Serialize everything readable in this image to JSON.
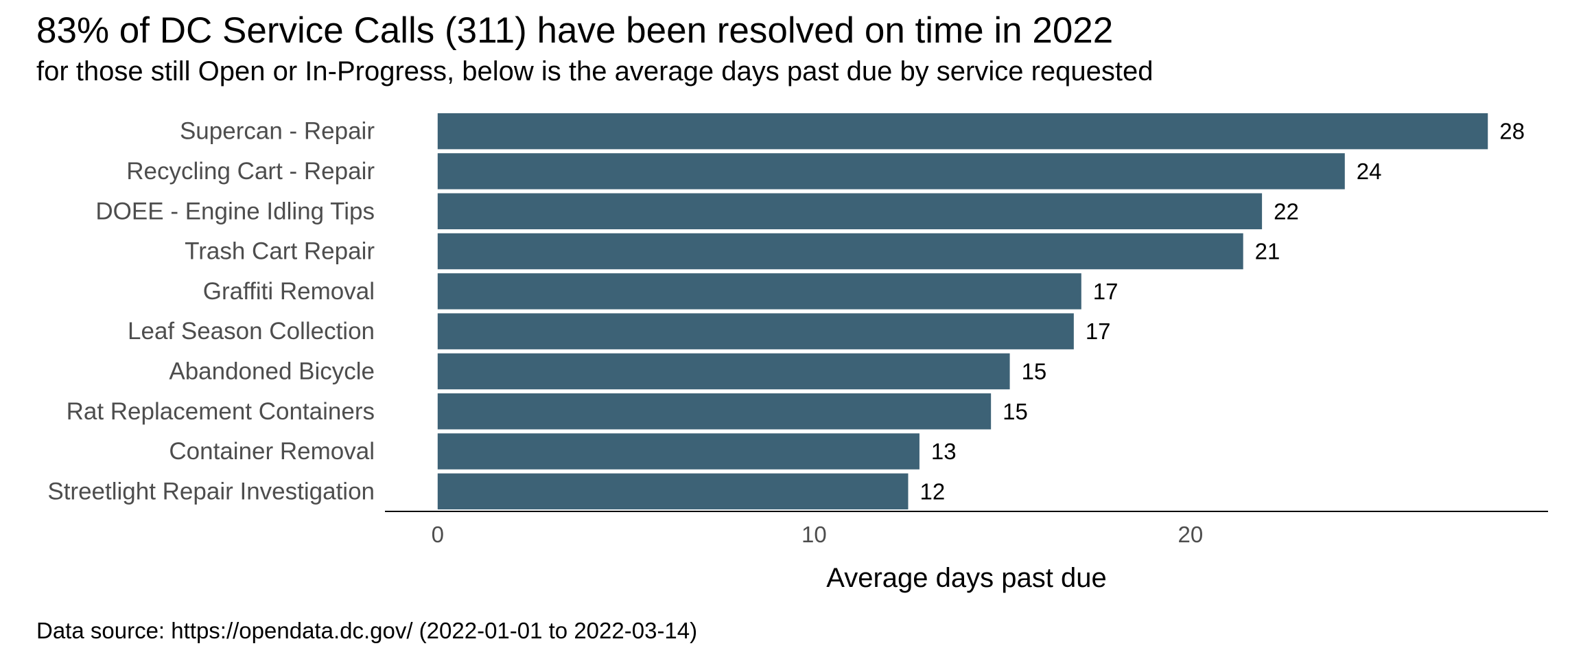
{
  "chart_data": {
    "type": "bar",
    "orientation": "horizontal",
    "title": "83% of DC Service Calls (311) have been resolved on time in 2022",
    "subtitle": "for those still Open or In-Progress, below is the average days past due by service requested",
    "caption": "Data source: https://opendata.dc.gov/ (2022-01-01 to 2022-03-14)",
    "categories": [
      "Supercan - Repair",
      "Recycling Cart - Repair",
      "DOEE - Engine Idling Tips",
      "Trash Cart Repair",
      "Graffiti Removal",
      "Leaf Season Collection",
      "Abandoned Bicycle",
      "Rat Replacement Containers",
      "Container Removal",
      "Streetlight Repair Investigation"
    ],
    "values": [
      27.9,
      24.1,
      21.9,
      21.4,
      17.1,
      16.9,
      15.2,
      14.7,
      12.8,
      12.5
    ],
    "value_labels": [
      "28",
      "24",
      "22",
      "21",
      "17",
      "17",
      "15",
      "15",
      "13",
      "12"
    ],
    "xlabel": "Average days past due",
    "ylabel": "",
    "xticks": [
      0,
      10,
      20
    ],
    "xlim": [
      -1.4,
      29.5
    ],
    "grid": false,
    "legend": "none",
    "bar_color": "#3d6276"
  }
}
